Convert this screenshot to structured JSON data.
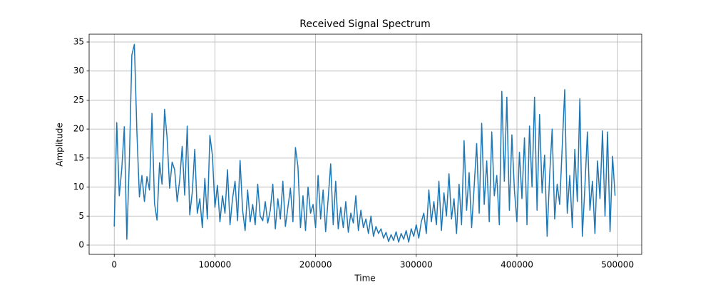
{
  "chart_data": {
    "type": "line",
    "title": "Received Signal Spectrum",
    "x_label": "Time",
    "y_label": "Amplitude",
    "x": [
      0,
      2500,
      5000,
      7500,
      10000,
      12500,
      15000,
      17500,
      20000,
      22500,
      25000,
      27500,
      30000,
      32500,
      35000,
      37500,
      40000,
      42500,
      45000,
      47500,
      50000,
      52500,
      55000,
      57500,
      60000,
      62500,
      65000,
      67500,
      70000,
      72500,
      75000,
      77500,
      80000,
      82500,
      85000,
      87500,
      90000,
      92500,
      95000,
      97500,
      100000,
      102500,
      105000,
      107500,
      110000,
      112500,
      115000,
      117500,
      120000,
      122500,
      125000,
      127500,
      130000,
      132500,
      135000,
      137500,
      140000,
      142500,
      145000,
      147500,
      150000,
      152500,
      155000,
      157500,
      160000,
      162500,
      165000,
      167500,
      170000,
      172500,
      175000,
      177500,
      180000,
      182500,
      185000,
      187500,
      190000,
      192500,
      195000,
      197500,
      200000,
      202500,
      205000,
      207500,
      210000,
      212500,
      215000,
      217500,
      220000,
      222500,
      225000,
      227500,
      230000,
      232500,
      235000,
      237500,
      240000,
      242500,
      245000,
      247500,
      250000,
      252500,
      255000,
      257500,
      260000,
      262500,
      265000,
      267500,
      270000,
      272500,
      275000,
      277500,
      280000,
      282500,
      285000,
      287500,
      290000,
      292500,
      295000,
      297500,
      300000,
      302500,
      305000,
      307500,
      310000,
      312500,
      315000,
      317500,
      320000,
      322500,
      325000,
      327500,
      330000,
      332500,
      335000,
      337500,
      340000,
      342500,
      345000,
      347500,
      350000,
      352500,
      355000,
      357500,
      360000,
      362500,
      365000,
      367500,
      370000,
      372500,
      375000,
      377500,
      380000,
      382500,
      385000,
      387500,
      390000,
      392500,
      395000,
      397500,
      400000,
      402500,
      405000,
      407500,
      410000,
      412500,
      415000,
      417500,
      420000,
      422500,
      425000,
      427500,
      430000,
      432500,
      435000,
      437500,
      440000,
      442500,
      445000,
      447500,
      450000,
      452500,
      455000,
      457500,
      460000,
      462500,
      465000,
      467500,
      470000,
      472500,
      475000,
      477500,
      480000,
      482500,
      485000,
      487500,
      490000,
      492500,
      495000,
      497500
    ],
    "values": [
      3.2,
      21.1,
      8.5,
      13.2,
      20.4,
      1.0,
      14.5,
      32.8,
      34.6,
      19.5,
      8.3,
      12.0,
      7.5,
      11.8,
      9.5,
      22.7,
      7.2,
      4.3,
      14.2,
      10.5,
      23.4,
      18.5,
      9.8,
      14.3,
      13.0,
      7.5,
      11.2,
      17.0,
      8.6,
      20.5,
      5.2,
      9.1,
      16.5,
      5.5,
      8.0,
      3.0,
      11.5,
      4.5,
      18.9,
      15.5,
      6.5,
      10.3,
      4.0,
      8.5,
      5.5,
      13.0,
      3.5,
      8.0,
      11.0,
      4.2,
      14.6,
      6.0,
      2.5,
      9.5,
      4.0,
      7.0,
      3.5,
      10.5,
      5.0,
      4.2,
      7.5,
      3.8,
      6.0,
      10.5,
      2.8,
      8.0,
      4.5,
      11.0,
      3.2,
      6.5,
      9.8,
      4.0,
      16.8,
      13.5,
      3.0,
      8.5,
      2.5,
      10.0,
      5.5,
      7.0,
      3.0,
      12.0,
      4.5,
      9.5,
      2.3,
      8.0,
      14.0,
      3.5,
      11.0,
      2.8,
      6.5,
      3.0,
      7.5,
      2.2,
      5.5,
      3.8,
      8.5,
      2.5,
      6.0,
      3.0,
      4.5,
      2.0,
      5.0,
      1.5,
      3.2,
      2.0,
      2.8,
      1.2,
      2.2,
      0.6,
      1.8,
      0.8,
      2.3,
      0.5,
      2.0,
      1.0,
      2.5,
      0.5,
      2.8,
      1.5,
      3.5,
      1.2,
      4.0,
      5.5,
      2.0,
      9.5,
      4.0,
      7.5,
      3.5,
      11.0,
      2.5,
      9.0,
      5.0,
      12.3,
      4.5,
      8.0,
      2.0,
      10.5,
      3.5,
      18.0,
      6.0,
      12.5,
      3.0,
      10.0,
      17.5,
      5.5,
      21.0,
      7.0,
      14.5,
      4.0,
      19.5,
      8.5,
      12.0,
      3.5,
      26.5,
      11.0,
      25.5,
      6.0,
      19.0,
      9.5,
      4.0,
      16.0,
      8.0,
      18.5,
      3.5,
      20.5,
      10.0,
      25.5,
      6.0,
      22.5,
      9.0,
      15.5,
      1.5,
      12.0,
      20.0,
      4.5,
      10.5,
      7.0,
      17.0,
      26.8,
      5.5,
      12.0,
      3.0,
      16.5,
      7.5,
      25.2,
      1.5,
      10.0,
      19.5,
      6.0,
      11.0,
      2.0,
      14.5,
      8.0,
      19.7,
      5.0,
      19.5,
      2.3,
      15.3,
      8.5
    ],
    "color": "#1f77b4",
    "xlim": [
      -24950,
      523950
    ],
    "ylim": [
      -1.6,
      36.35
    ],
    "xticks": [
      0,
      100000,
      200000,
      300000,
      400000,
      500000
    ],
    "yticks": [
      0,
      5,
      10,
      15,
      20,
      25,
      30,
      35
    ],
    "grid": true
  }
}
